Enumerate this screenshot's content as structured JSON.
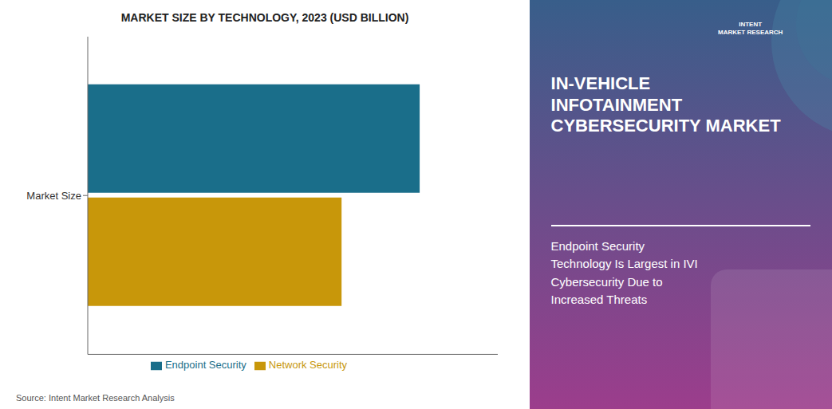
{
  "chart_data": {
    "type": "bar",
    "orientation": "horizontal",
    "title": "MARKET SIZE BY TECHNOLOGY, 2023 (USD BILLION)",
    "categories": [
      "Market Size"
    ],
    "series": [
      {
        "name": "Endpoint Security",
        "color": "#1a6e8a",
        "values": [
          0.85
        ]
      },
      {
        "name": "Network Security",
        "color": "#c8970a",
        "values": [
          0.65
        ]
      }
    ],
    "xlim": [
      0,
      1.05
    ],
    "tick_labels": "y",
    "legend": "bottom",
    "annotations": [
      "Source: Intent Market Research Analysis",
      "INTENT\nMARKET RESEARCH",
      "IN-VEHICLE\nINFOTAINMENT\nCYBERSECURITY MARKET",
      "Endpoint Security\nTechnology Is Largest in IVI\nCybersecurity Due to\nIncreased Threats"
    ]
  }
}
